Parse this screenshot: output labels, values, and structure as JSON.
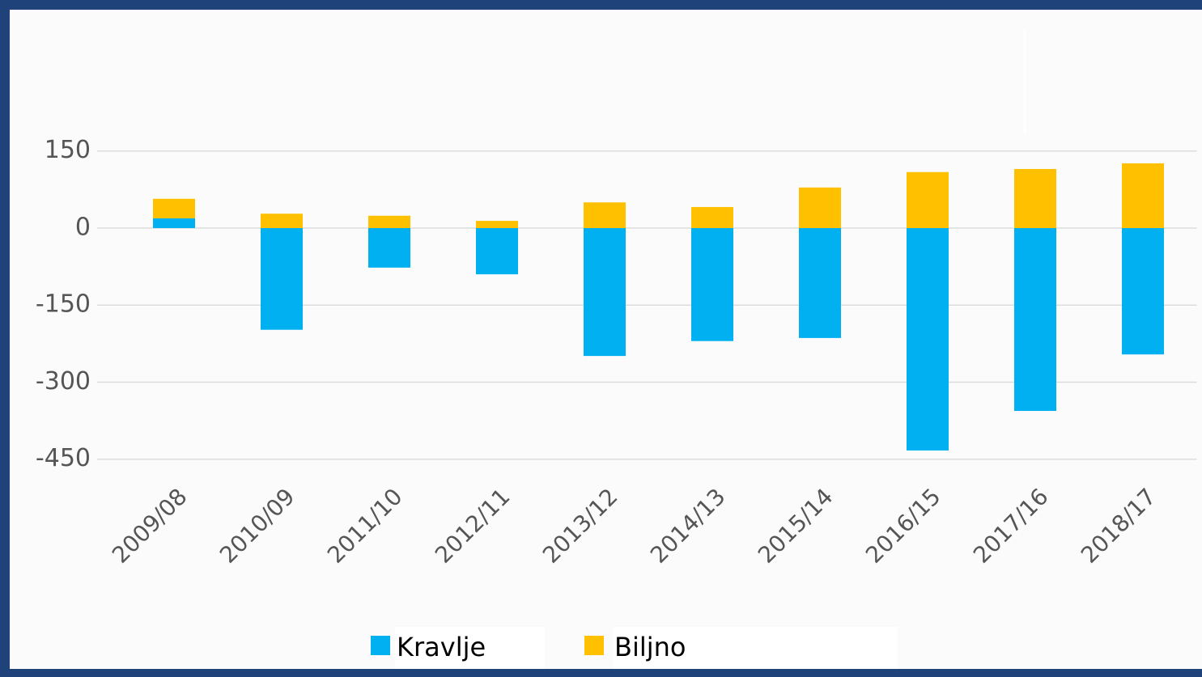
{
  "chart_data": {
    "type": "stacked_bar",
    "categories": [
      "2009/08",
      "2010/09",
      "2011/10",
      "2012/11",
      "2013/12",
      "2014/13",
      "2015/14",
      "2016/15",
      "2017/16",
      "2018/17"
    ],
    "series": [
      {
        "name": "Kravlje",
        "color": "#00b0f0",
        "values": [
          19,
          -198,
          -77,
          -90,
          -249,
          -220,
          -214,
          -433,
          -356,
          -246
        ]
      },
      {
        "name": "Biljno",
        "color": "#ffc000",
        "values": [
          38,
          28,
          24,
          14,
          50,
          41,
          79,
          109,
          115,
          126
        ]
      }
    ],
    "ylim": [
      -480,
      390
    ],
    "yticks": [
      -450,
      -300,
      -150,
      0,
      150
    ],
    "grid": true,
    "legend": "bottom"
  }
}
